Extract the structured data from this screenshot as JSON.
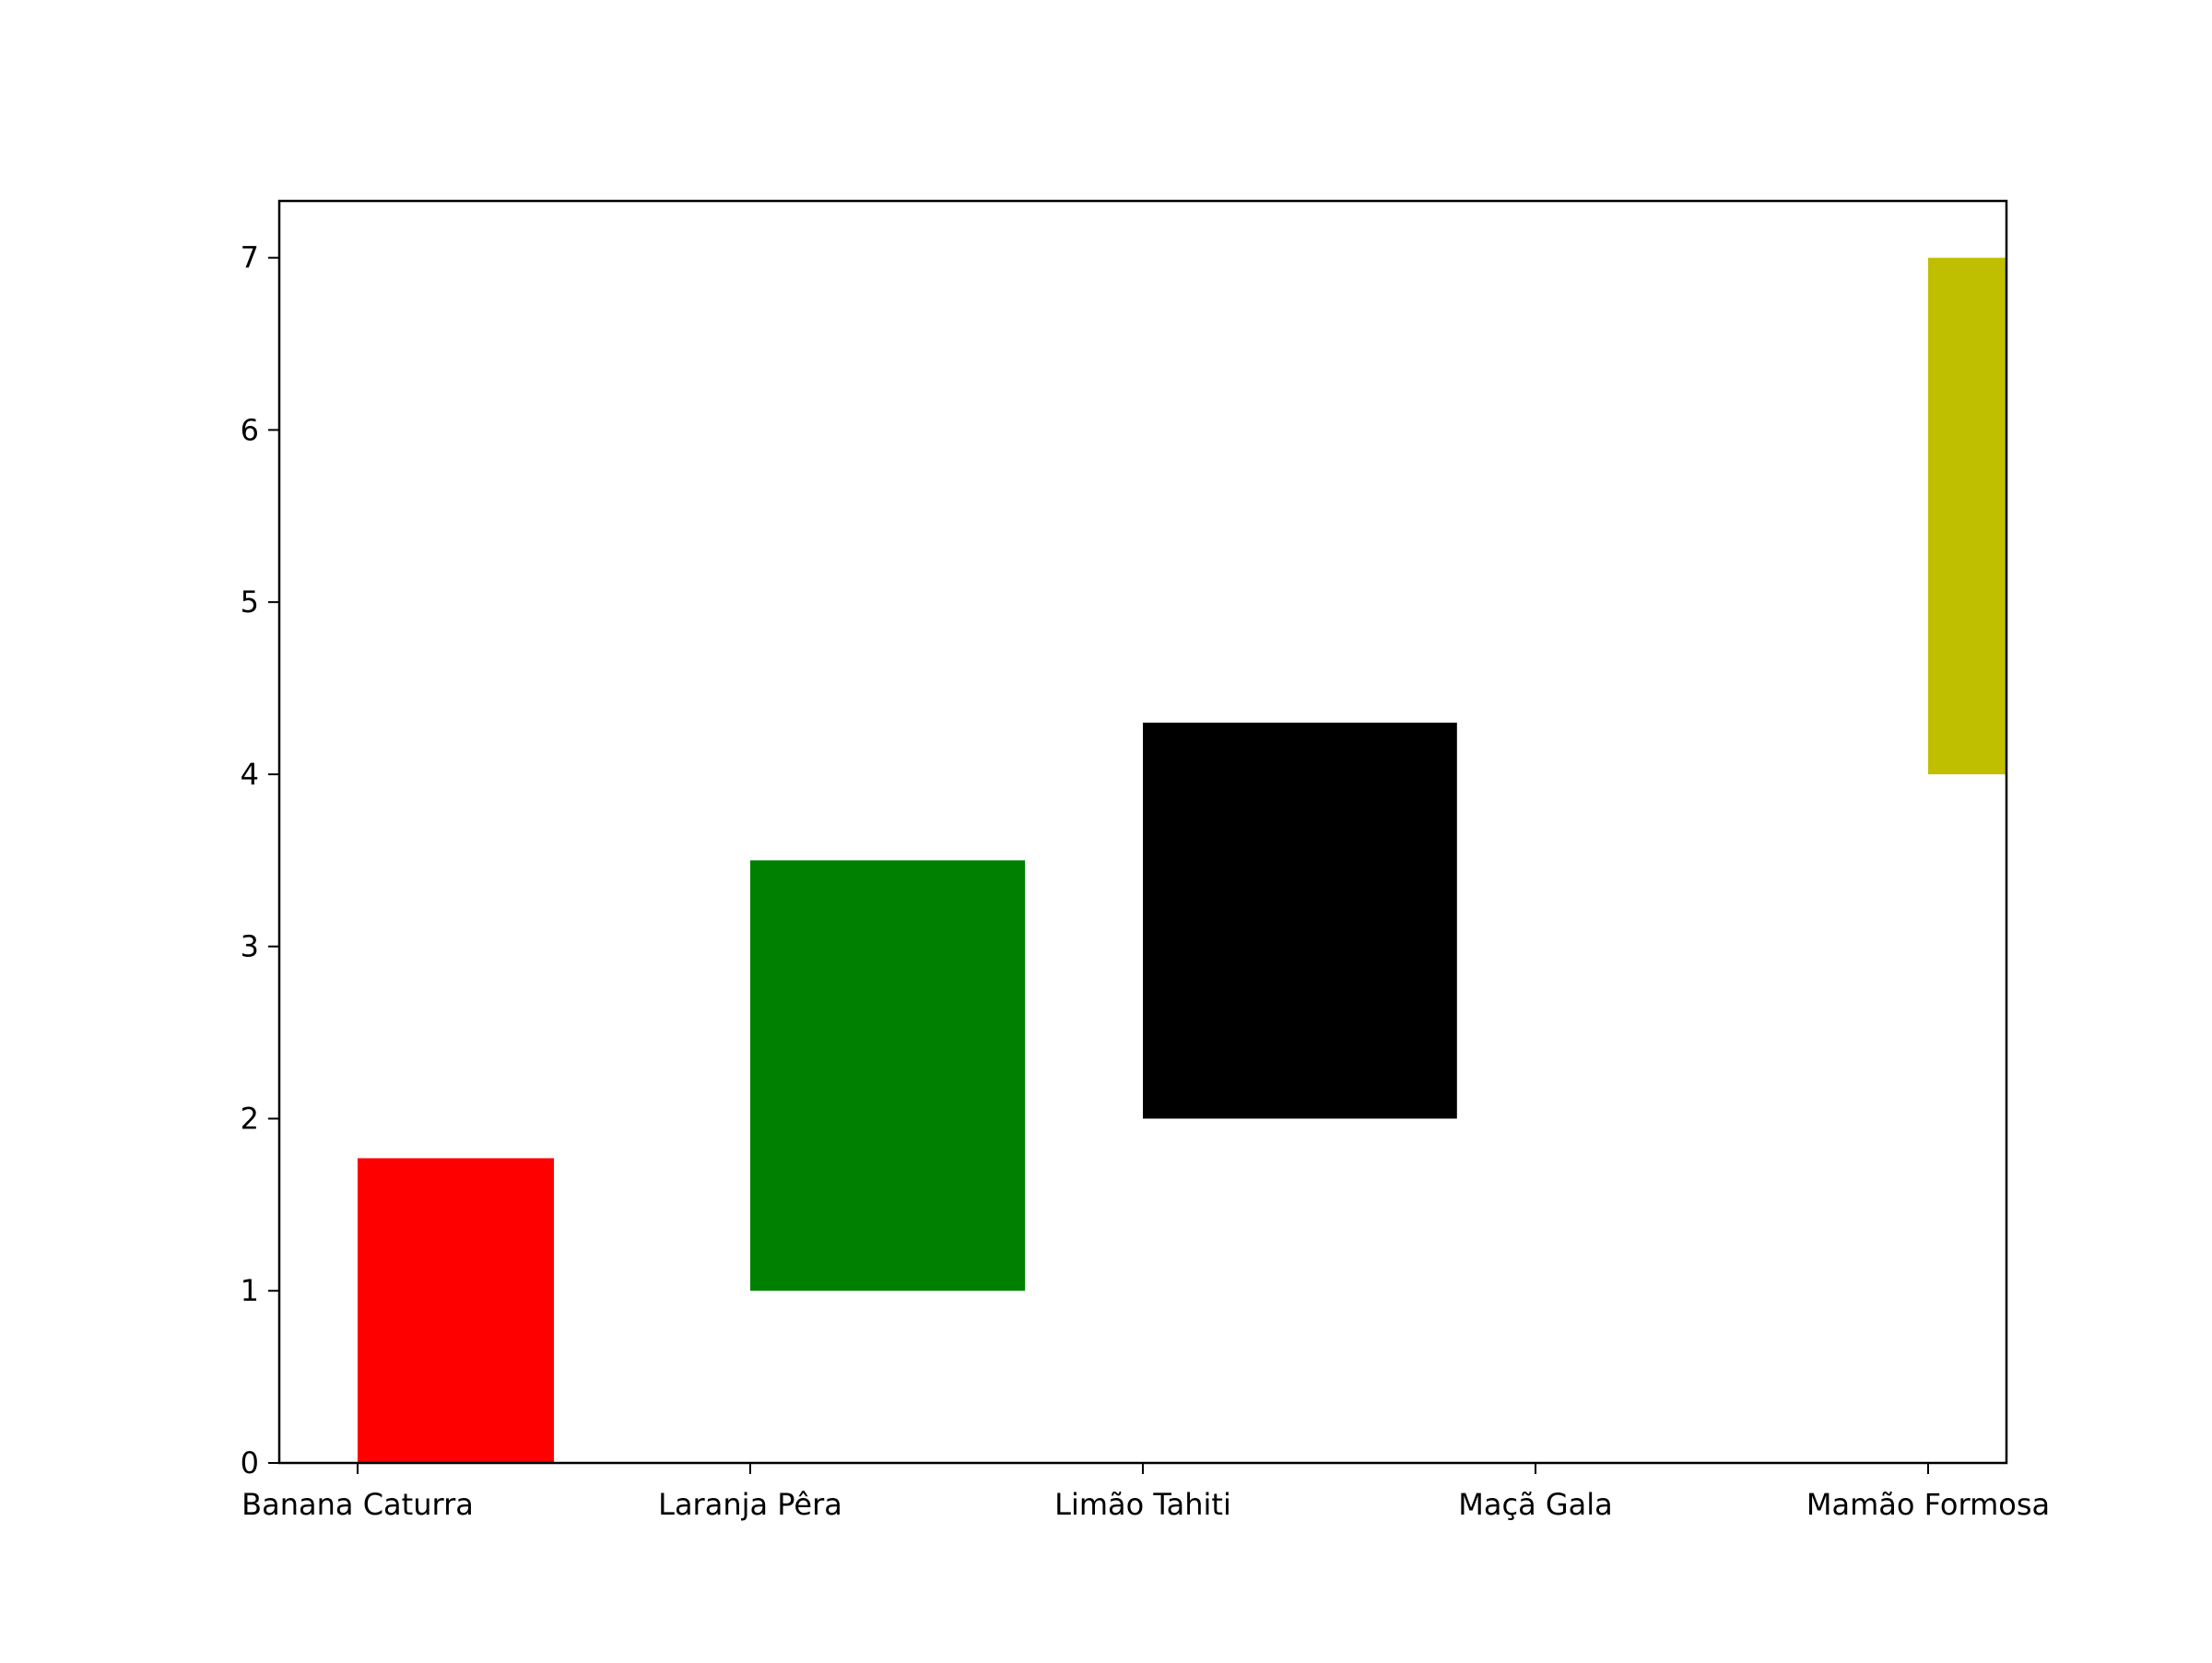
{
  "chart_data": {
    "type": "bar",
    "categories": [
      "Banana Caturra",
      "Laranja Pêra",
      "Limão Tahiti",
      "Maçã Gala",
      "Mamão Formosa"
    ],
    "series": [
      {
        "bars": [
          {
            "category": "Banana Caturra",
            "bottom": 0,
            "top": 1.77,
            "width_fraction": 0.5,
            "color": "#ff0000"
          },
          {
            "category": "Laranja Pêra",
            "bottom": 1.0,
            "top": 3.5,
            "width_fraction": 0.7,
            "color": "#008000"
          },
          {
            "category": "Limão Tahiti",
            "bottom": 2.0,
            "top": 4.3,
            "width_fraction": 0.8,
            "color": "#000000"
          },
          {
            "category": "Maçã Gala",
            "bottom": null,
            "top": null,
            "width_fraction": 0,
            "color": null
          },
          {
            "category": "Mamão Formosa",
            "bottom": 4.0,
            "top": 7.0,
            "width_fraction": 0.2,
            "color": "#bfbf00"
          }
        ]
      }
    ],
    "title": "",
    "xlabel": "",
    "ylabel": "",
    "ylim": [
      0,
      7.33
    ],
    "yticks": [
      "0",
      "1",
      "2",
      "3",
      "4",
      "5",
      "6",
      "7"
    ],
    "grid": false,
    "legend": "none"
  }
}
